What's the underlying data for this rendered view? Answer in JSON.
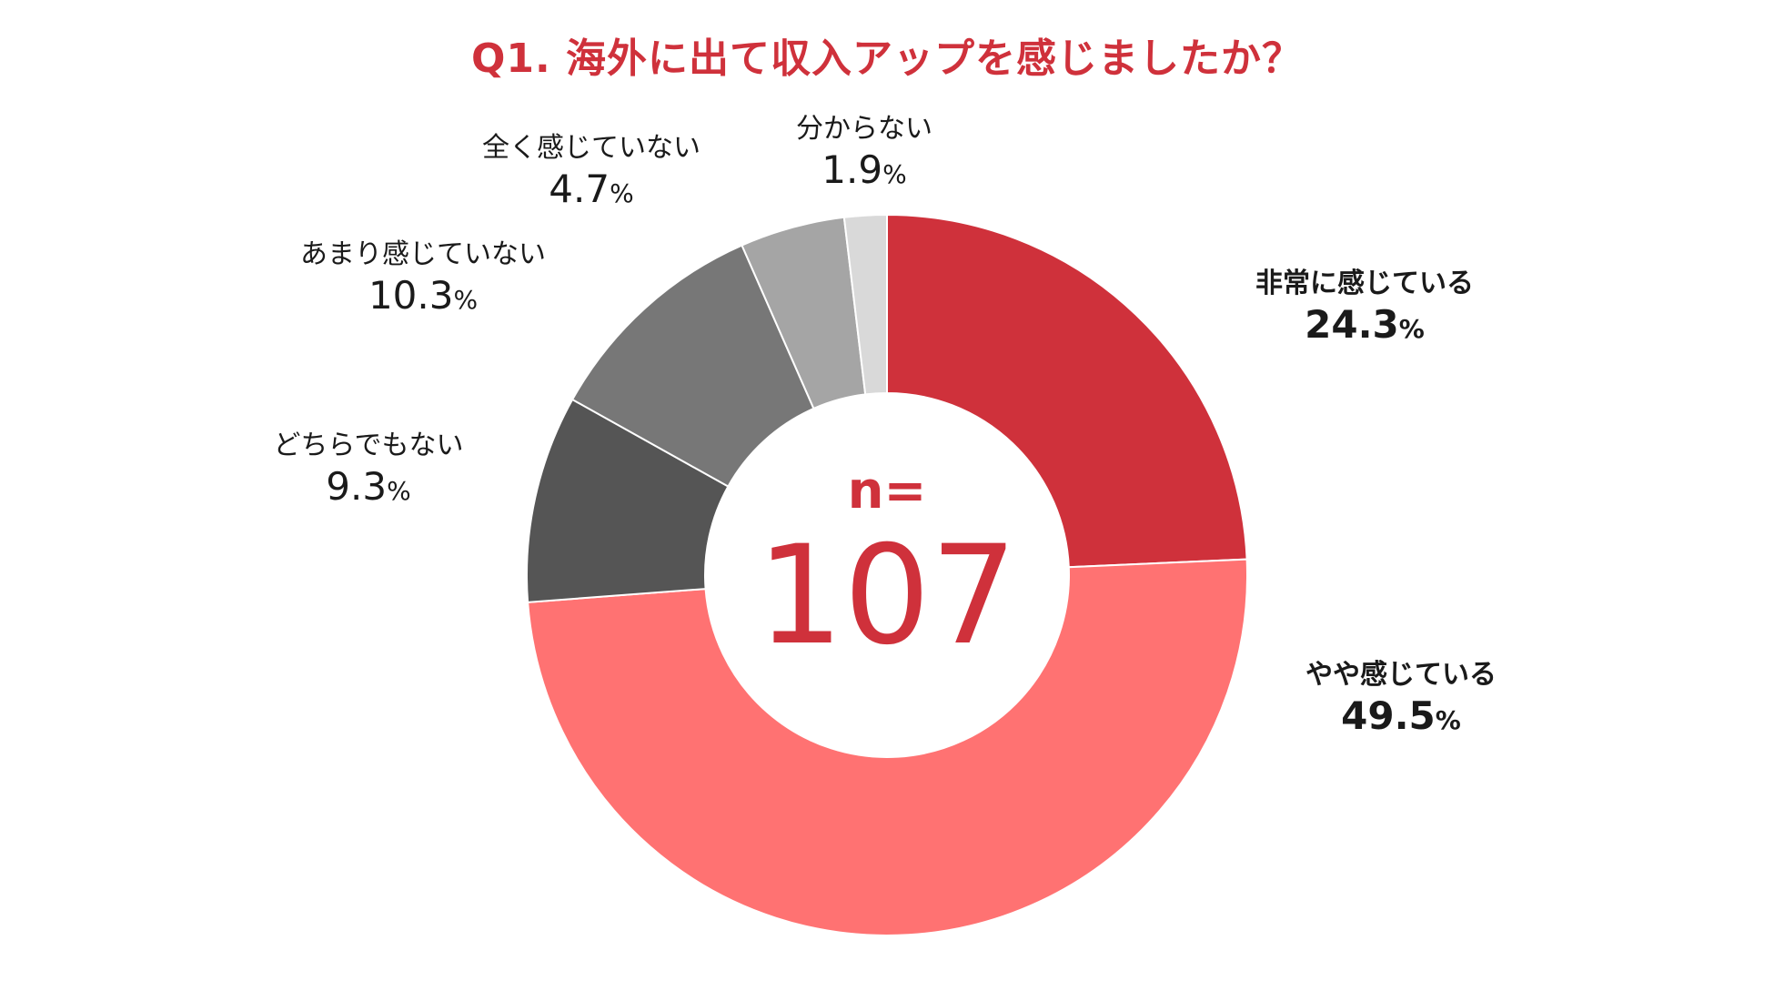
{
  "chart_data": {
    "type": "pie",
    "title": "Q1. 海外に出て収入アップを感じましたか？",
    "center_label": "n=",
    "center_value": "107",
    "unit": "%",
    "slices": [
      {
        "label": "非常に感じている",
        "value": 24.3,
        "value_text": "24.3",
        "color": "#cf313b"
      },
      {
        "label": "やや感じている",
        "value": 49.5,
        "value_text": "49.5",
        "color": "#ff7272"
      },
      {
        "label": "どちらでもない",
        "value": 9.3,
        "value_text": "9.3",
        "color": "#555555"
      },
      {
        "label": "あまり感じていない",
        "value": 10.3,
        "value_text": "10.3",
        "color": "#777777"
      },
      {
        "label": "全く感じていない",
        "value": 4.7,
        "value_text": "4.7",
        "color": "#a5a5a5"
      },
      {
        "label": "分からない",
        "value": 1.9,
        "value_text": "1.9",
        "color": "#d9d9d9"
      }
    ]
  }
}
